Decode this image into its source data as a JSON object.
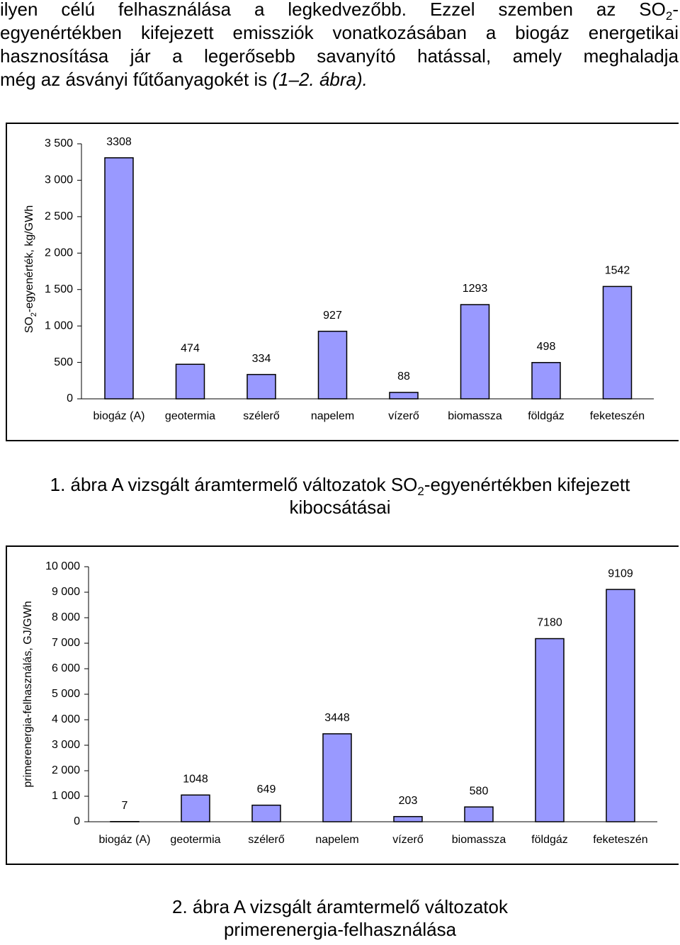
{
  "paragraph": {
    "line1": [
      "ilyen célú felhasználása a legkedvezőbb. Ezzel szemben az SO",
      "2",
      "-"
    ],
    "line2": "egyenértékben kifejezett emissziók vonatkozásában a biogáz energetikai",
    "line3": "hasznosítása jár a legerősebb savanyító hatással, amely meghaladja",
    "line4": [
      "még az ásványi fűtőanyagokét is ",
      "(1–2. ábra)."
    ]
  },
  "chart_data": [
    {
      "type": "bar",
      "ylabel": [
        "SO",
        "2",
        "-egyenérték, kg/GWh"
      ],
      "categories": [
        "biogáz (A)",
        "geotermia",
        "szélerő",
        "napelem",
        "vízerő",
        "biomassza",
        "földgáz",
        "feketeszén"
      ],
      "values": [
        3308,
        474,
        334,
        927,
        88,
        1293,
        498,
        1542
      ],
      "color": "#9999ff",
      "ylim": [
        0,
        3500
      ],
      "yticks": [
        0,
        500,
        {
          "value": 1000,
          "label": "1 000"
        },
        {
          "value": 1500,
          "label": "1 500"
        },
        {
          "value": 2000,
          "label": "2 000"
        },
        {
          "value": 2500,
          "label": "2 500"
        },
        {
          "value": 3000,
          "label": "3 000"
        },
        {
          "value": 3500,
          "label": "3 500"
        }
      ],
      "grid": false
    },
    {
      "type": "bar",
      "ylabel": [
        "primerenergia-felhasználás, GJ/GWh"
      ],
      "categories": [
        "biogáz (A)",
        "geotermia",
        "szélerő",
        "napelem",
        "vízerő",
        "biomassza",
        "földgáz",
        "feketeszén"
      ],
      "values": [
        7,
        1048,
        649,
        3448,
        203,
        580,
        7180,
        9109
      ],
      "color": "#9999ff",
      "ylim": [
        0,
        10000
      ],
      "yticks": [
        0,
        {
          "value": 1000,
          "label": "1 000"
        },
        {
          "value": 2000,
          "label": "2 000"
        },
        {
          "value": 3000,
          "label": "3 000"
        },
        {
          "value": 4000,
          "label": "4 000"
        },
        {
          "value": 5000,
          "label": "5 000"
        },
        {
          "value": 6000,
          "label": "6 000"
        },
        {
          "value": 7000,
          "label": "7 000"
        },
        {
          "value": 8000,
          "label": "8 000"
        },
        {
          "value": 9000,
          "label": "9 000"
        },
        {
          "value": 10000,
          "label": "10 000"
        }
      ],
      "grid": false
    }
  ],
  "captions": [
    [
      "1. ábra A vizsgált áramtermelő változatok SO",
      "2",
      "-egyenértékben kifejezett",
      "kibocsátásai"
    ],
    [
      "2. ábra A vizsgált áramtermelő változatok",
      "primerenergia-felhasználása"
    ]
  ]
}
